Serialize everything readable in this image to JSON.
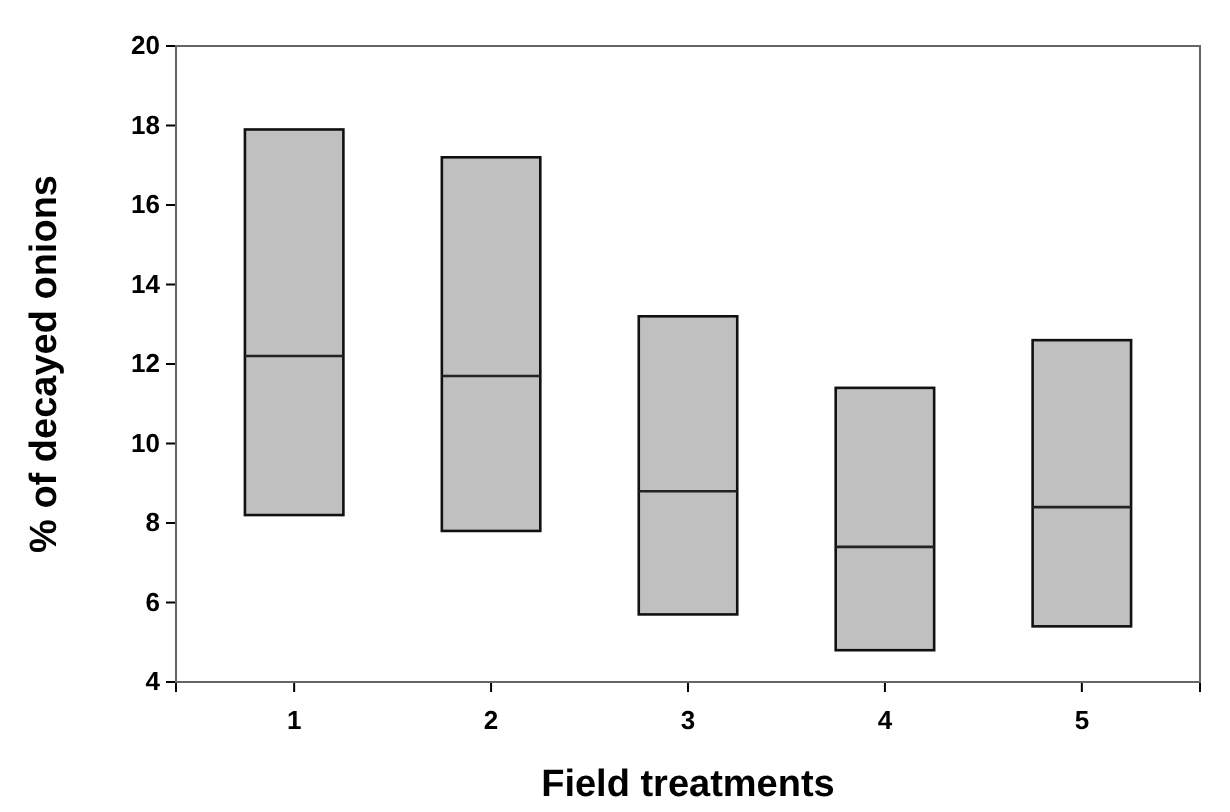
{
  "chart_data": {
    "type": "box",
    "xlabel": "Field treatments",
    "ylabel": "% of decayed onions",
    "categories": [
      "1",
      "2",
      "3",
      "4",
      "5"
    ],
    "boxes": [
      {
        "low": 8.2,
        "q1": 8.2,
        "median": 12.2,
        "q3": 17.9,
        "high": 17.9
      },
      {
        "low": 7.8,
        "q1": 7.8,
        "median": 11.7,
        "q3": 17.2,
        "high": 17.2
      },
      {
        "low": 5.7,
        "q1": 5.7,
        "median": 8.8,
        "q3": 13.2,
        "high": 13.2
      },
      {
        "low": 4.8,
        "q1": 4.8,
        "median": 7.4,
        "q3": 11.4,
        "high": 11.4
      },
      {
        "low": 5.4,
        "q1": 5.4,
        "median": 8.4,
        "q3": 12.6,
        "high": 12.6
      }
    ],
    "color": "#c0c0c0",
    "ylim": [
      4,
      20
    ],
    "yticks": [
      4,
      6,
      8,
      10,
      12,
      14,
      16,
      18,
      20
    ]
  }
}
